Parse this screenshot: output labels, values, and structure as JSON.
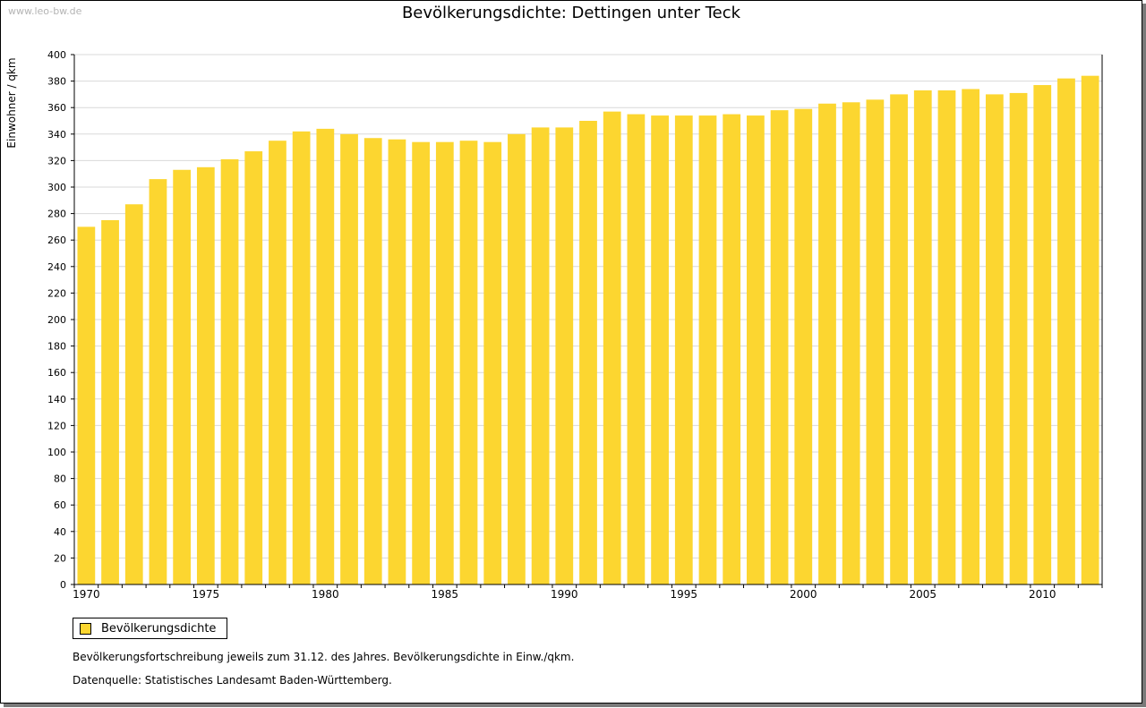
{
  "page": {
    "watermark": "www.leo-bw.de",
    "legend_label": "Bevölkerungsdichte",
    "note_1": "Bevölkerungsfortschreibung jeweils zum 31.12. des Jahres. Bevölkerungsdichte in Einw./qkm.",
    "note_2": "Datenquelle: Statistisches Landesamt Baden-Württemberg."
  },
  "colors": {
    "bar": "#fcd630",
    "grid": "#d9d9d9",
    "axis": "#000000"
  },
  "chart_data": {
    "type": "bar",
    "title": "Bevölkerungsdichte: Dettingen unter Teck",
    "xlabel": "",
    "ylabel": "Einwohner / qkm",
    "ylim": [
      0,
      400
    ],
    "yticks": [
      0,
      20,
      40,
      60,
      80,
      100,
      120,
      140,
      160,
      180,
      200,
      220,
      240,
      260,
      280,
      300,
      320,
      340,
      360,
      380,
      400
    ],
    "xtick_labels": [
      "1970",
      "1975",
      "1980",
      "1985",
      "1990",
      "1995",
      "2000",
      "2005",
      "2010"
    ],
    "grid": true,
    "legend": "bottom-left",
    "categories": [
      1970,
      1971,
      1972,
      1973,
      1974,
      1975,
      1976,
      1977,
      1978,
      1979,
      1980,
      1981,
      1982,
      1983,
      1984,
      1985,
      1986,
      1987,
      1988,
      1989,
      1990,
      1991,
      1992,
      1993,
      1994,
      1995,
      1996,
      1997,
      1998,
      1999,
      2000,
      2001,
      2002,
      2003,
      2004,
      2005,
      2006,
      2007,
      2008,
      2009,
      2010,
      2011,
      2012
    ],
    "series": [
      {
        "name": "Bevölkerungsdichte",
        "values": [
          270,
          275,
          287,
          306,
          313,
          315,
          321,
          327,
          335,
          342,
          344,
          340,
          337,
          336,
          334,
          334,
          335,
          334,
          340,
          345,
          345,
          350,
          357,
          355,
          354,
          354,
          354,
          355,
          354,
          358,
          359,
          363,
          364,
          366,
          370,
          373,
          373,
          374,
          370,
          371,
          377,
          382,
          384
        ]
      }
    ]
  }
}
